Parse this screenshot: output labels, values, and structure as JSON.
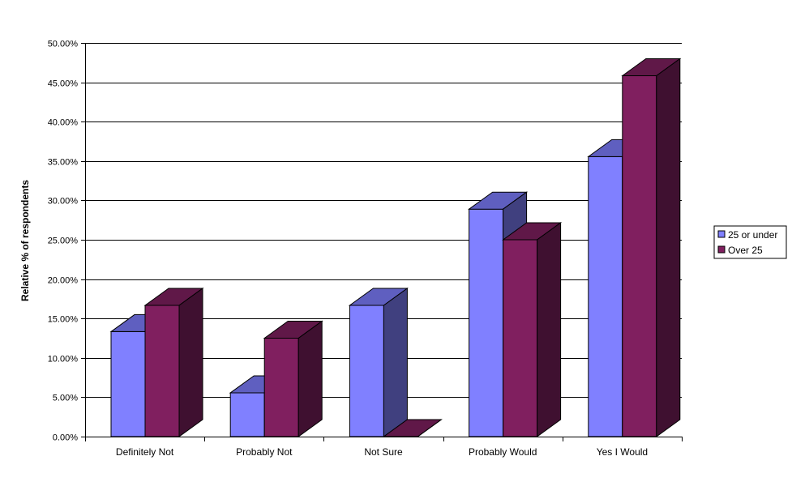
{
  "chart_data": {
    "type": "bar",
    "title": "",
    "xlabel": "",
    "ylabel": "Relative % of respondents",
    "categories": [
      "Definitely Not",
      "Probably Not",
      "Not Sure",
      "Probably Would",
      "Yes I Would"
    ],
    "series": [
      {
        "name": "25 or under",
        "values": [
          13.33,
          5.56,
          16.67,
          28.89,
          35.56
        ]
      },
      {
        "name": "Over 25",
        "values": [
          16.67,
          12.5,
          0.0,
          25.0,
          45.83
        ]
      }
    ],
    "ylim": [
      0,
      50
    ],
    "yticks": [
      "0.00%",
      "5.00%",
      "10.00%",
      "15.00%",
      "20.00%",
      "25.00%",
      "30.00%",
      "35.00%",
      "40.00%",
      "45.00%",
      "50.00%"
    ],
    "grid": true,
    "legend_position": "right",
    "colors": {
      "series1_front": "#8080ff",
      "series1_top": "#5f5fc0",
      "series1_side": "#40407f",
      "series2_front": "#801f5f",
      "series2_top": "#601848",
      "series2_side": "#3f1030"
    }
  }
}
